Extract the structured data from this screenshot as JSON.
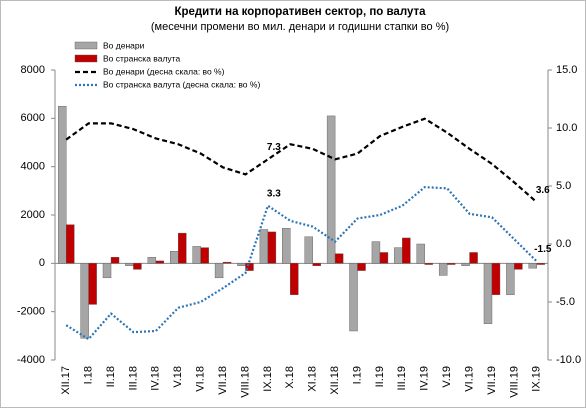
{
  "chart_data": {
    "type": "bar-line",
    "title": "Кредити на корпоративен сектор, по валута",
    "subtitle": "(месечни промени во мил. денари и годишни стапки во %)",
    "categories": [
      "XII.17",
      "I.18",
      "II.18",
      "III.18",
      "IV.18",
      "V.18",
      "VI.18",
      "VII.18",
      "VIII.18",
      "IX.18",
      "X.18",
      "XI.18",
      "XII.18",
      "I.19",
      "II.19",
      "III.19",
      "IV.19",
      "V.19",
      "VI.19",
      "VII.19",
      "VIII.19",
      "IX.19"
    ],
    "series": [
      {
        "name": "Во денари",
        "type": "bar",
        "color": "#a6a6a6",
        "values": [
          6500,
          -3100,
          -600,
          -100,
          250,
          500,
          700,
          -600,
          -100,
          1400,
          1450,
          1100,
          6100,
          -2800,
          900,
          650,
          800,
          -500,
          -100,
          -2500,
          -1300,
          -200
        ]
      },
      {
        "name": "Во странска валута",
        "type": "bar",
        "color": "#c00000",
        "values": [
          1600,
          -1700,
          250,
          -250,
          100,
          1250,
          650,
          50,
          -300,
          1300,
          -1300,
          -100,
          400,
          -300,
          450,
          1050,
          -50,
          -50,
          450,
          -1300,
          -250,
          -50
        ]
      },
      {
        "name": "Во денари  (десна скала: во %)",
        "type": "line",
        "dash": "dashed",
        "axis": "y2",
        "color": "#000000",
        "labeled_points": [
          9,
          21
        ],
        "values": [
          9.0,
          10.4,
          10.4,
          9.9,
          9.1,
          8.6,
          7.8,
          6.6,
          6.0,
          7.3,
          8.6,
          8.2,
          7.3,
          7.8,
          9.3,
          10.1,
          10.8,
          9.6,
          8.2,
          6.9,
          5.3,
          3.6
        ]
      },
      {
        "name": "Во странска валута  (десна скала: во %)",
        "type": "line",
        "dash": "dotted",
        "axis": "y2",
        "color": "#2e75b6",
        "labeled_points": [
          9,
          21
        ],
        "values": [
          -7.0,
          -8.2,
          -6.0,
          -7.6,
          -7.5,
          -5.5,
          -5.0,
          -3.8,
          -2.5,
          3.3,
          2.0,
          1.5,
          0.2,
          2.2,
          2.5,
          3.3,
          4.9,
          4.8,
          2.6,
          2.3,
          0.4,
          -1.5
        ]
      }
    ],
    "ylim": [
      -4000,
      8000
    ],
    "yticks": [
      -4000,
      -2000,
      0,
      2000,
      4000,
      6000,
      8000
    ],
    "y2lim": [
      -10,
      15
    ],
    "y2ticks": [
      {
        "value": -10,
        "label": "-10.0"
      },
      {
        "value": -5,
        "label": "-5.0"
      },
      {
        "value": 0,
        "label": "0.0"
      },
      {
        "value": 5,
        "label": "5.0"
      },
      {
        "value": 10,
        "label": "10.0"
      },
      {
        "value": 15,
        "label": "15.0"
      }
    ]
  }
}
